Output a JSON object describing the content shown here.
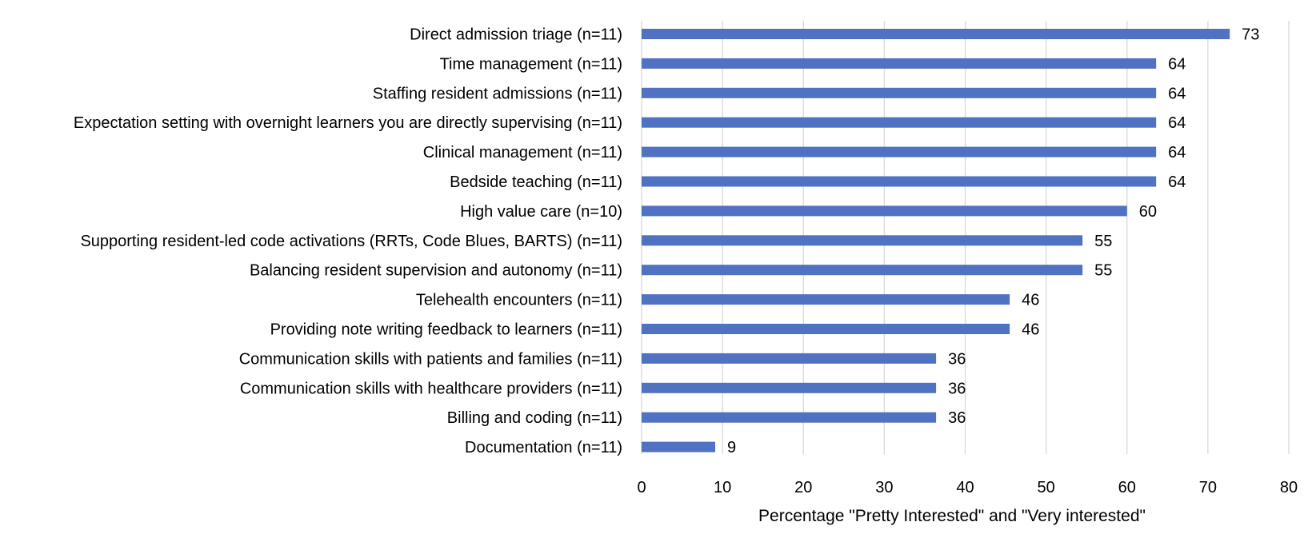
{
  "chart_data": {
    "type": "bar",
    "orientation": "horizontal",
    "categories": [
      "Direct admission triage (n=11)",
      "Time management (n=11)",
      "Staffing resident admissions (n=11)",
      "Expectation setting with overnight learners you are directly supervising (n=11)",
      "Clinical management (n=11)",
      "Bedside teaching (n=11)",
      "High value care (n=10)",
      "Supporting resident-led code activations (RRTs, Code Blues, BARTS) (n=11)",
      "Balancing resident supervision and autonomy (n=11)",
      "Telehealth encounters (n=11)",
      "Providing note writing feedback to learners (n=11)",
      "Communication skills with patients and families (n=11)",
      "Communication skills with healthcare providers (n=11)",
      "Billing and coding (n=11)",
      "Documentation (n=11)"
    ],
    "values": [
      72.7,
      63.6,
      63.6,
      63.6,
      63.6,
      63.6,
      60,
      54.5,
      54.5,
      45.5,
      45.5,
      36.4,
      36.4,
      36.4,
      9.1
    ],
    "data_labels": [
      "73",
      "64",
      "64",
      "64",
      "64",
      "64",
      "60",
      "55",
      "55",
      "46",
      "46",
      "36",
      "36",
      "36",
      "9"
    ],
    "title": "",
    "xlabel": "Percentage \"Pretty Interested\" and \"Very interested\"",
    "ylabel": "",
    "xlim": [
      0,
      80
    ],
    "xticks": [
      "0",
      "10",
      "20",
      "30",
      "40",
      "50",
      "60",
      "70",
      "80"
    ],
    "grid": true,
    "legend": "none",
    "bar_color": "#4f72c2"
  }
}
